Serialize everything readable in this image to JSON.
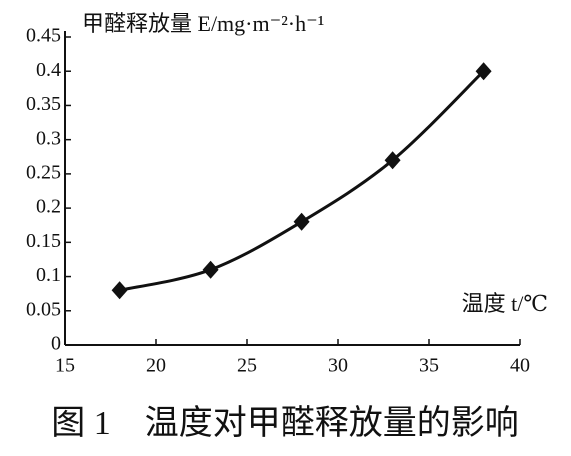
{
  "chart_data": {
    "type": "line",
    "y_label": "甲醛释放量 E/mg·m⁻²·h⁻¹",
    "x_label": "温度 t/℃",
    "caption": "图 1　温度对甲醛释放量的影响",
    "x": [
      18,
      23,
      28,
      33,
      38
    ],
    "series": [
      {
        "color": "#111111",
        "values": [
          0.08,
          0.11,
          0.18,
          0.27,
          0.4
        ]
      }
    ],
    "xlim": [
      15,
      40
    ],
    "xticks": [
      15,
      20,
      25,
      30,
      35,
      40
    ],
    "ylim": [
      0,
      0.45
    ],
    "yticks": [
      0,
      0.05,
      0.1,
      0.15,
      0.2,
      0.25,
      0.3,
      0.35,
      0.4,
      0.45
    ]
  }
}
